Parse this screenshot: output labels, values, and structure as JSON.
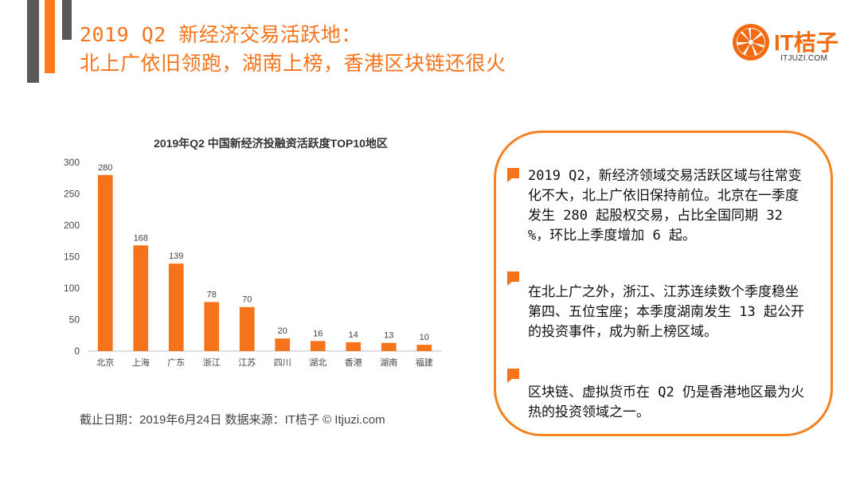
{
  "header": {
    "title_line1": "2019 Q2 新经济交易活跃地：",
    "title_line2": "北上广依旧领跑，湖南上榜，香港区块链还很火"
  },
  "logo": {
    "text": "IT桔子",
    "sub": "ITJUZI.COM"
  },
  "colors": {
    "accent": "#f5731a",
    "dark": "#595959"
  },
  "chart_data": {
    "type": "bar",
    "title": "2019年Q2 中国新经济投融资活跃度TOP10地区",
    "categories": [
      "北京",
      "上海",
      "广东",
      "浙江",
      "江苏",
      "四川",
      "湖北",
      "香港",
      "湖南",
      "福建"
    ],
    "values": [
      280,
      168,
      139,
      78,
      70,
      20,
      16,
      14,
      13,
      10
    ],
    "yticks": [
      0,
      50,
      100,
      150,
      200,
      250,
      300
    ],
    "ylim": [
      0,
      300
    ],
    "xlabel": "",
    "ylabel": "",
    "grid": false,
    "bar_color": "#f5731a"
  },
  "source": "截止日期：2019年6月24日    数据来源：IT桔子 © Itjuzi.com",
  "panel": {
    "paragraphs": [
      "2019 Q2，新经济领域交易活跃区域与往常变化不大，北上广依旧保持前位。北京在一季度发生 280 起股权交易，占比全国同期 32 %，环比上季度增加 6 起。",
      "在北上广之外，浙江、江苏连续数个季度稳坐第四、五位宝座；本季度湖南发生 13 起公开的投资事件，成为新上榜区域。",
      "区块链、虚拟货币在 Q2 仍是香港地区最为火热的投资领域之一。"
    ]
  }
}
